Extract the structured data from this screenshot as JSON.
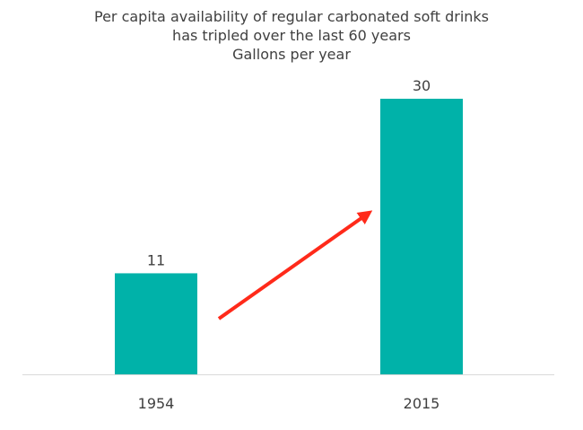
{
  "title_lines": [
    "Per capita availability of regular carbonated soft drinks",
    "has tripled over the last 60 years",
    "Gallons per year"
  ],
  "colors": {
    "bar": "#00b2a9",
    "arrow": "#ff2a1a",
    "axis": "#d9d9d9",
    "text": "#404040"
  },
  "chart_data": {
    "type": "bar",
    "title": "Per capita availability of regular carbonated soft drinks has tripled over the last 60 years",
    "subtitle": "Gallons per year",
    "categories": [
      "1954",
      "2015"
    ],
    "values": [
      11,
      30
    ],
    "data_labels": [
      "11",
      "30"
    ],
    "annotation": "red arrow pointing upward from the 1954 bar to the 2015 bar",
    "grid": false,
    "legend": "none"
  }
}
